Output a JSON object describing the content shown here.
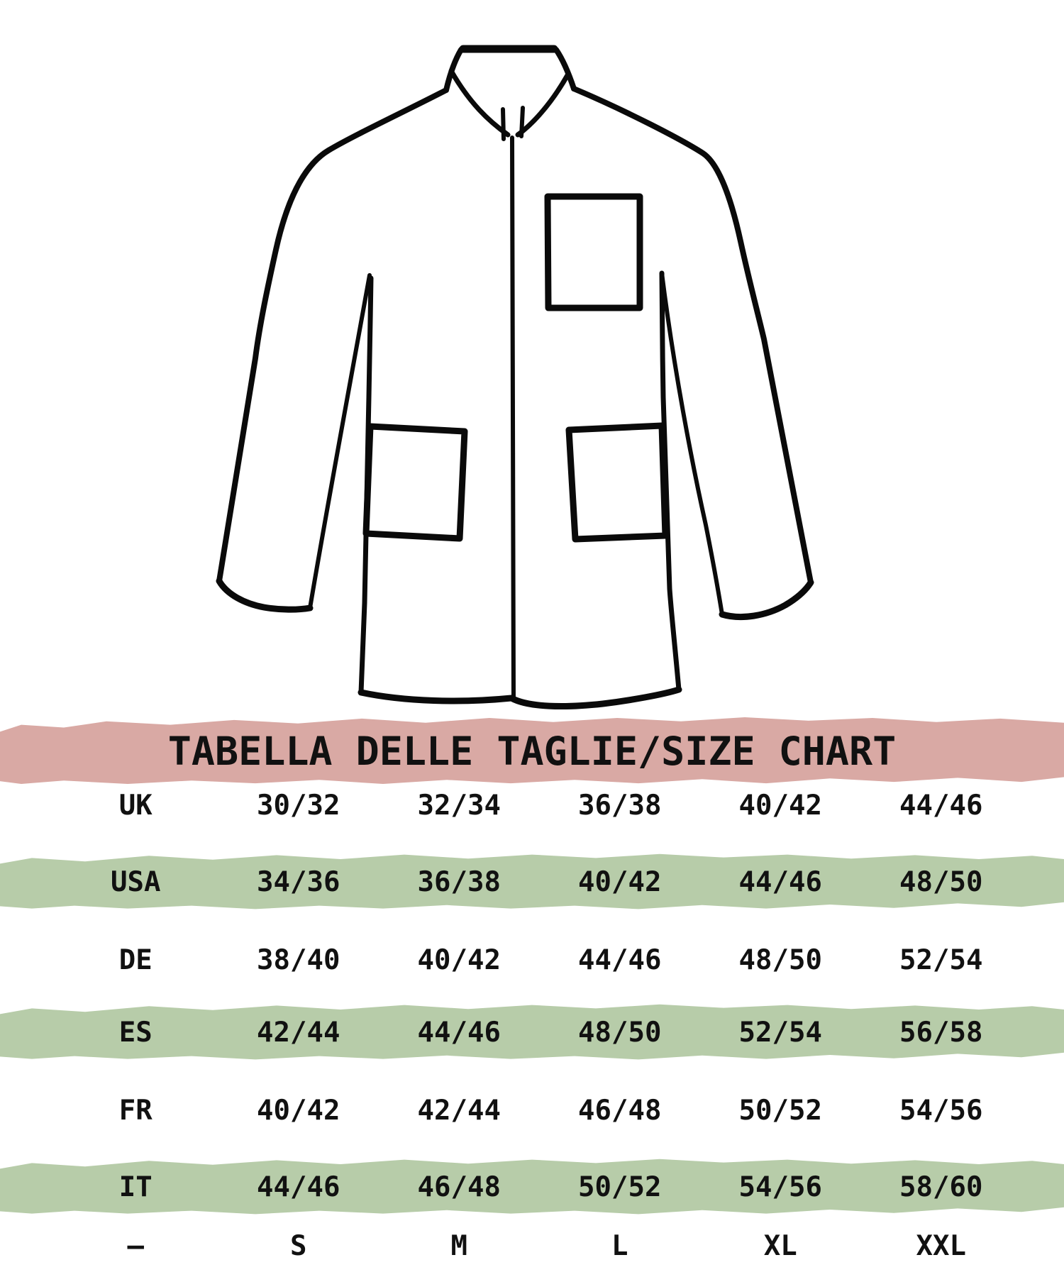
{
  "title_banner": {
    "text": "TABELLA DELLE TAGLIE/SIZE CHART",
    "bg_color": "#d9a9a4"
  },
  "illustration": {
    "name": "jacket-line-drawing",
    "stroke_color": "#0a0a0a"
  },
  "highlight_color": "#b7cca9",
  "chart_data": {
    "type": "table",
    "title": "TABELLA DELLE TAGLIE/SIZE CHART",
    "legend_position": "none",
    "grid": false,
    "rows": [
      {
        "label": "UK",
        "values": [
          "30/32",
          "32/34",
          "36/38",
          "40/42",
          "44/46"
        ],
        "highlight": false
      },
      {
        "label": "USA",
        "values": [
          "34/36",
          "36/38",
          "40/42",
          "44/46",
          "48/50"
        ],
        "highlight": true
      },
      {
        "label": "DE",
        "values": [
          "38/40",
          "40/42",
          "44/46",
          "48/50",
          "52/54"
        ],
        "highlight": false
      },
      {
        "label": "ES",
        "values": [
          "42/44",
          "44/46",
          "48/50",
          "52/54",
          "56/58"
        ],
        "highlight": true
      },
      {
        "label": "FR",
        "values": [
          "40/42",
          "42/44",
          "46/48",
          "50/52",
          "54/56"
        ],
        "highlight": false
      },
      {
        "label": "IT",
        "values": [
          "44/46",
          "46/48",
          "50/52",
          "54/56",
          "58/60"
        ],
        "highlight": true
      },
      {
        "label": "–",
        "values": [
          "S",
          "M",
          "L",
          "XL",
          "XXL"
        ],
        "highlight": false
      }
    ]
  }
}
